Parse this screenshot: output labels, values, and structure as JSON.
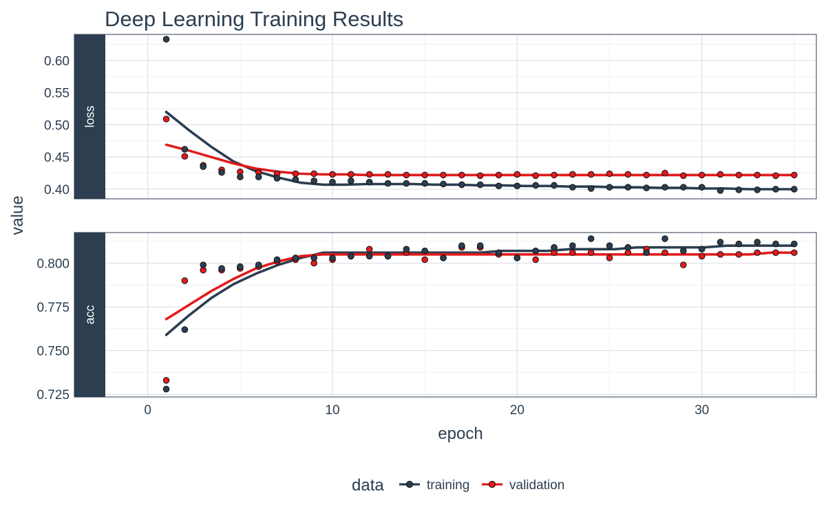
{
  "chart_data": {
    "type": "scatter",
    "title": "Deep Learning Training Results",
    "xlabel": "epoch",
    "ylabel": "value",
    "xlim": [
      -2.3,
      36.2
    ],
    "x_ticks": [
      0,
      10,
      20,
      30
    ],
    "x_tick_labels": [
      "0",
      "10",
      "20",
      "30"
    ],
    "legend": {
      "title": "data",
      "position": "bottom",
      "entries": [
        {
          "name": "training",
          "color": "#2c3e50"
        },
        {
          "name": "validation",
          "color": "#e31a1c"
        }
      ]
    },
    "smooth": "loess",
    "facets": [
      {
        "key": "loss",
        "label": "loss",
        "ylim": [
          0.385,
          0.6405
        ],
        "y_ticks": [
          0.4,
          0.45,
          0.5,
          0.55,
          0.6
        ],
        "y_tick_labels": [
          "0.40",
          "0.45",
          "0.50",
          "0.55",
          "0.60"
        ],
        "x": [
          1,
          2,
          3,
          4,
          5,
          6,
          7,
          8,
          9,
          10,
          11,
          12,
          13,
          14,
          15,
          16,
          17,
          18,
          19,
          20,
          21,
          22,
          23,
          24,
          25,
          26,
          27,
          28,
          29,
          30,
          31,
          32,
          33,
          34,
          35
        ],
        "series": [
          {
            "name": "training",
            "color": "#2c3e50",
            "values": [
              0.633,
              0.462,
              0.435,
              0.426,
              0.419,
              0.419,
              0.417,
              0.415,
              0.413,
              0.411,
              0.413,
              0.411,
              0.409,
              0.409,
              0.409,
              0.408,
              0.407,
              0.407,
              0.405,
              0.405,
              0.406,
              0.406,
              0.403,
              0.401,
              0.403,
              0.403,
              0.402,
              0.403,
              0.403,
              0.403,
              0.398,
              0.399,
              0.399,
              0.4,
              0.4
            ],
            "smooth": [
              0.52,
              0.492,
              0.466,
              0.443,
              0.428,
              0.418,
              0.41,
              0.407,
              0.407,
              0.408,
              0.408,
              0.408,
              0.407,
              0.407,
              0.406,
              0.406,
              0.405,
              0.405,
              0.404,
              0.404,
              0.403,
              0.403,
              0.402,
              0.402,
              0.401,
              0.401,
              0.4,
              0.4,
              0.4
            ]
          },
          {
            "name": "validation",
            "color": "#e31a1c",
            "values": [
              0.509,
              0.451,
              0.437,
              0.43,
              0.427,
              0.426,
              0.424,
              0.424,
              0.424,
              0.423,
              0.423,
              0.423,
              0.423,
              0.422,
              0.422,
              0.422,
              0.422,
              0.421,
              0.422,
              0.423,
              0.421,
              0.422,
              0.423,
              0.423,
              0.424,
              0.423,
              0.422,
              0.425,
              0.421,
              0.422,
              0.423,
              0.422,
              0.422,
              0.421,
              0.422
            ],
            "smooth": [
              0.469,
              0.46,
              0.45,
              0.44,
              0.432,
              0.427,
              0.424,
              0.423,
              0.423,
              0.422,
              0.422,
              0.422,
              0.422,
              0.422,
              0.422,
              0.422,
              0.422,
              0.422,
              0.422,
              0.422,
              0.422,
              0.422,
              0.422,
              0.422,
              0.422,
              0.422,
              0.422,
              0.422,
              0.422
            ]
          }
        ]
      },
      {
        "key": "acc",
        "label": "acc",
        "ylim": [
          0.7235,
          0.8175
        ],
        "y_ticks": [
          0.725,
          0.75,
          0.775,
          0.8
        ],
        "y_tick_labels": [
          "0.725",
          "0.750",
          "0.775",
          "0.800"
        ],
        "x": [
          1,
          2,
          3,
          4,
          5,
          6,
          7,
          8,
          9,
          10,
          11,
          12,
          13,
          14,
          15,
          16,
          17,
          18,
          19,
          20,
          21,
          22,
          23,
          24,
          25,
          26,
          27,
          28,
          29,
          30,
          31,
          32,
          33,
          34,
          35
        ],
        "series": [
          {
            "name": "training",
            "color": "#2c3e50",
            "values": [
              0.728,
              0.762,
              0.799,
              0.797,
              0.798,
              0.799,
              0.802,
              0.803,
              0.803,
              0.803,
              0.804,
              0.804,
              0.804,
              0.808,
              0.807,
              0.803,
              0.81,
              0.81,
              0.806,
              0.803,
              0.807,
              0.809,
              0.81,
              0.814,
              0.81,
              0.809,
              0.806,
              0.814,
              0.807,
              0.808,
              0.812,
              0.811,
              0.812,
              0.811,
              0.811
            ],
            "smooth": [
              0.759,
              0.77,
              0.78,
              0.788,
              0.794,
              0.799,
              0.803,
              0.806,
              0.806,
              0.806,
              0.806,
              0.806,
              0.806,
              0.806,
              0.806,
              0.807,
              0.807,
              0.807,
              0.808,
              0.808,
              0.808,
              0.809,
              0.809,
              0.809,
              0.809,
              0.81,
              0.81,
              0.81,
              0.81
            ]
          },
          {
            "name": "validation",
            "color": "#e31a1c",
            "values": [
              0.733,
              0.79,
              0.796,
              0.796,
              0.797,
              0.798,
              0.801,
              0.802,
              0.8,
              0.802,
              0.804,
              0.808,
              0.804,
              0.806,
              0.802,
              0.803,
              0.809,
              0.809,
              0.805,
              0.803,
              0.802,
              0.806,
              0.806,
              0.806,
              0.803,
              0.806,
              0.808,
              0.806,
              0.799,
              0.804,
              0.805,
              0.805,
              0.806,
              0.806,
              0.806
            ],
            "smooth": [
              0.768,
              0.776,
              0.784,
              0.791,
              0.797,
              0.801,
              0.804,
              0.805,
              0.805,
              0.805,
              0.805,
              0.805,
              0.805,
              0.805,
              0.805,
              0.805,
              0.805,
              0.805,
              0.805,
              0.805,
              0.805,
              0.805,
              0.805,
              0.805,
              0.805,
              0.805,
              0.805,
              0.806,
              0.806
            ]
          }
        ]
      }
    ]
  }
}
